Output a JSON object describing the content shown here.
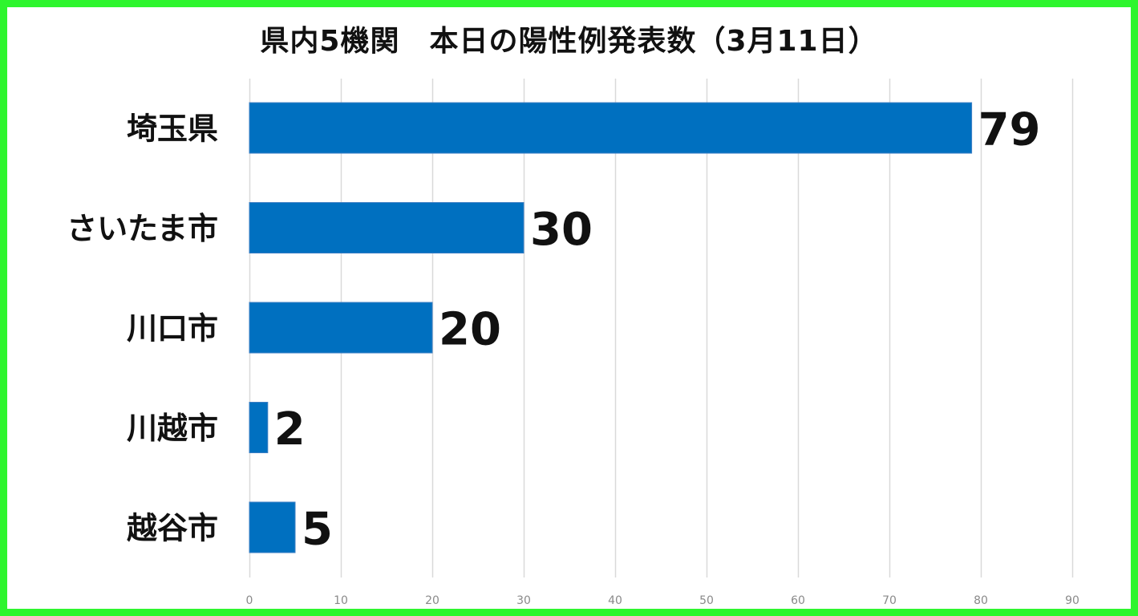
{
  "chart_data": {
    "type": "bar",
    "orientation": "horizontal",
    "title": "県内5機関　本日の陽性例発表数（3月11日）",
    "categories": [
      "埼玉県",
      "さいたま市",
      "川口市",
      "川越市",
      "越谷市"
    ],
    "values": [
      79,
      30,
      20,
      2,
      5
    ],
    "data_labels": [
      "79",
      "30",
      "20",
      "2",
      "5"
    ],
    "xlim": [
      0,
      90
    ],
    "x_ticks": [
      0,
      10,
      20,
      30,
      40,
      50,
      60,
      70,
      80,
      90
    ],
    "x_tick_labels": [
      "0",
      "10",
      "20",
      "30",
      "40",
      "50",
      "60",
      "70",
      "80",
      "90"
    ],
    "grid": "vertical",
    "legend": "none",
    "colors": {
      "bar": "#0070c0",
      "bar_edge": "#3d7fc4",
      "grid": "#d9d9d9",
      "border": "#2ef52e",
      "text": "#111111",
      "tick_text": "#8a8a8a"
    }
  }
}
